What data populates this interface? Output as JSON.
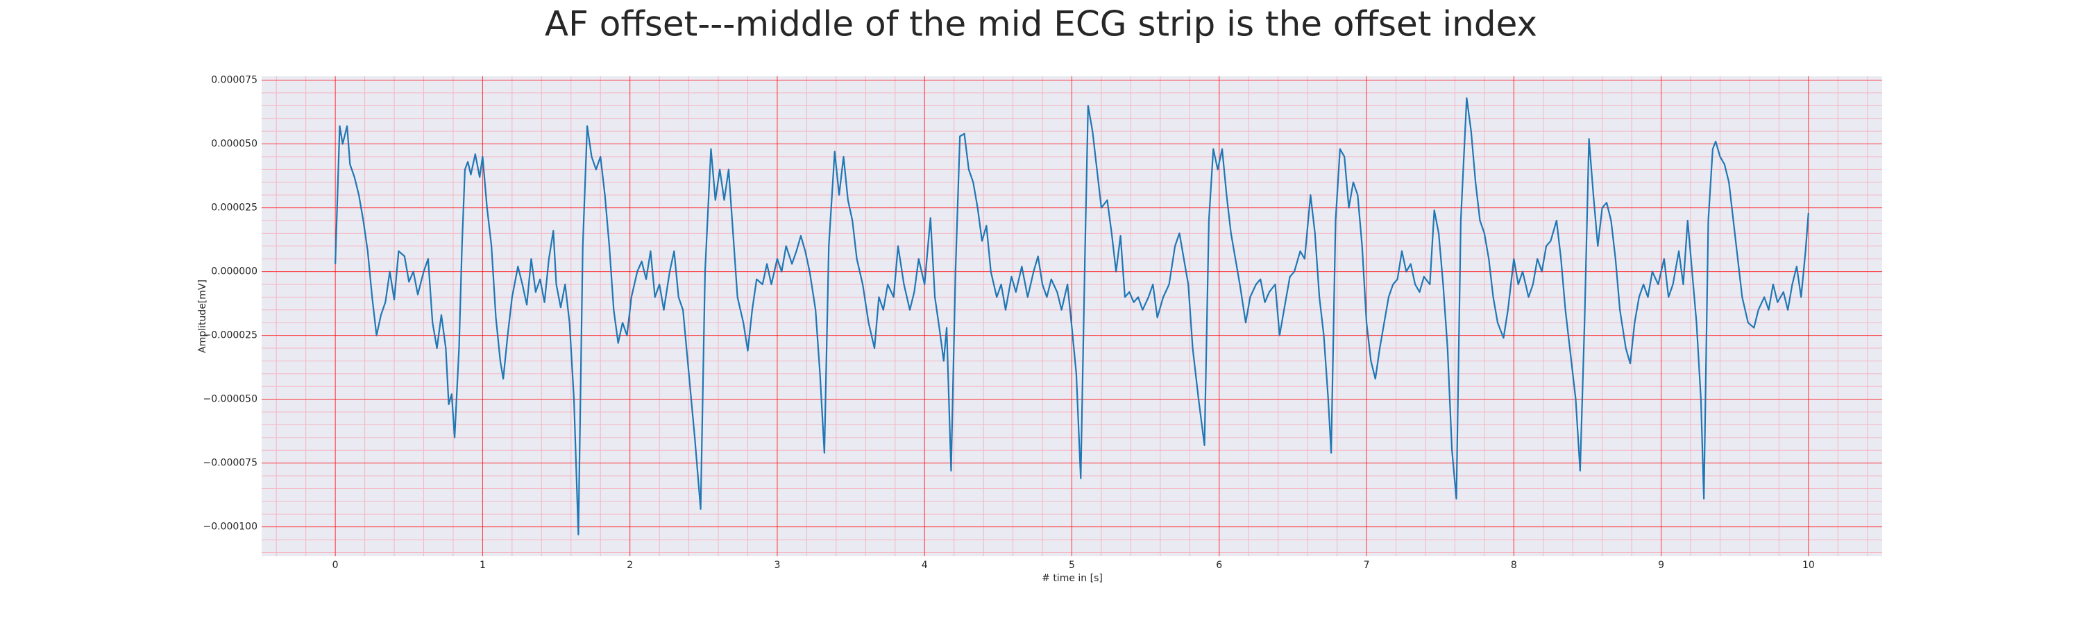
{
  "chart_data": {
    "type": "line",
    "title": "AF offset---middle of the mid ECG strip is the offset index",
    "xlabel": "# time in [s]",
    "ylabel": "Amplitude[mV]",
    "color": "#1f77b4",
    "grid": true,
    "xlim": [
      -0.5,
      10.5
    ],
    "xticks": [
      0,
      1,
      2,
      3,
      4,
      5,
      6,
      7,
      8,
      9,
      10
    ],
    "ylim": [
      -0.0001115,
      7.65e-05
    ],
    "yticks": [
      {
        "value": -0.0001,
        "label": "−0.000100"
      },
      {
        "value": -7.5e-05,
        "label": "−0.000075"
      },
      {
        "value": -5e-05,
        "label": "−0.000050"
      },
      {
        "value": -2.5e-05,
        "label": "−0.000025"
      },
      {
        "value": 0,
        "label": "0.000000"
      },
      {
        "value": 2.5e-05,
        "label": "0.000025"
      },
      {
        "value": 5e-05,
        "label": "0.000050"
      },
      {
        "value": 7.5e-05,
        "label": "0.000075"
      }
    ],
    "x": [
      0,
      0.03,
      0.05,
      0.08,
      0.1,
      0.13,
      0.16,
      0.19,
      0.22,
      0.25,
      0.28,
      0.31,
      0.34,
      0.37,
      0.4,
      0.43,
      0.47,
      0.5,
      0.53,
      0.56,
      0.6,
      0.63,
      0.66,
      0.69,
      0.72,
      0.75,
      0.77,
      0.79,
      0.81,
      0.84,
      0.86,
      0.88,
      0.9,
      0.92,
      0.95,
      0.98,
      1.0,
      1.03,
      1.06,
      1.09,
      1.12,
      1.14,
      1.17,
      1.2,
      1.24,
      1.27,
      1.3,
      1.33,
      1.36,
      1.39,
      1.42,
      1.45,
      1.48,
      1.5,
      1.53,
      1.56,
      1.59,
      1.62,
      1.65,
      1.68,
      1.71,
      1.74,
      1.77,
      1.8,
      1.83,
      1.86,
      1.89,
      1.92,
      1.95,
      1.98,
      2.01,
      2.05,
      2.08,
      2.11,
      2.14,
      2.17,
      2.2,
      2.23,
      2.27,
      2.3,
      2.33,
      2.36,
      2.4,
      2.44,
      2.48,
      2.51,
      2.55,
      2.58,
      2.61,
      2.64,
      2.67,
      2.7,
      2.73,
      2.77,
      2.8,
      2.83,
      2.86,
      2.9,
      2.93,
      2.96,
      3.0,
      3.03,
      3.06,
      3.1,
      3.13,
      3.16,
      3.19,
      3.22,
      3.26,
      3.29,
      3.32,
      3.35,
      3.39,
      3.42,
      3.45,
      3.48,
      3.51,
      3.54,
      3.58,
      3.62,
      3.66,
      3.69,
      3.72,
      3.75,
      3.79,
      3.82,
      3.86,
      3.9,
      3.93,
      3.96,
      4.0,
      4.04,
      4.07,
      4.1,
      4.13,
      4.15,
      4.18,
      4.21,
      4.24,
      4.27,
      4.3,
      4.33,
      4.36,
      4.39,
      4.42,
      4.45,
      4.49,
      4.52,
      4.55,
      4.59,
      4.62,
      4.66,
      4.7,
      4.74,
      4.77,
      4.8,
      4.83,
      4.86,
      4.9,
      4.93,
      4.97,
      5.0,
      5.03,
      5.06,
      5.09,
      5.11,
      5.14,
      5.17,
      5.2,
      5.24,
      5.27,
      5.3,
      5.33,
      5.36,
      5.39,
      5.42,
      5.45,
      5.48,
      5.52,
      5.55,
      5.58,
      5.62,
      5.66,
      5.7,
      5.73,
      5.76,
      5.79,
      5.82,
      5.86,
      5.9,
      5.93,
      5.96,
      5.99,
      6.02,
      6.05,
      6.08,
      6.11,
      6.14,
      6.18,
      6.21,
      6.25,
      6.28,
      6.31,
      6.34,
      6.38,
      6.41,
      6.44,
      6.48,
      6.51,
      6.55,
      6.58,
      6.62,
      6.65,
      6.68,
      6.71,
      6.74,
      6.76,
      6.79,
      6.82,
      6.85,
      6.88,
      6.91,
      6.94,
      6.97,
      7.0,
      7.03,
      7.06,
      7.09,
      7.12,
      7.15,
      7.18,
      7.21,
      7.24,
      7.27,
      7.3,
      7.33,
      7.36,
      7.39,
      7.43,
      7.46,
      7.49,
      7.52,
      7.55,
      7.58,
      7.61,
      7.64,
      7.68,
      7.71,
      7.74,
      7.77,
      7.8,
      7.83,
      7.86,
      7.89,
      7.93,
      7.96,
      8.0,
      8.03,
      8.06,
      8.1,
      8.13,
      8.16,
      8.19,
      8.22,
      8.25,
      8.29,
      8.32,
      8.35,
      8.38,
      8.42,
      8.45,
      8.48,
      8.51,
      8.54,
      8.57,
      8.6,
      8.63,
      8.66,
      8.69,
      8.72,
      8.76,
      8.79,
      8.82,
      8.85,
      8.88,
      8.91,
      8.94,
      8.98,
      9.02,
      9.05,
      9.08,
      9.12,
      9.15,
      9.18,
      9.21,
      9.24,
      9.27,
      9.29,
      9.32,
      9.35,
      9.37,
      9.4,
      9.43,
      9.46,
      9.49,
      9.52,
      9.55,
      9.59,
      9.63,
      9.66,
      9.7,
      9.73,
      9.76,
      9.79,
      9.83,
      9.86,
      9.89,
      9.92,
      9.95,
      9.98,
      10.0
    ],
    "values": [
      3e-06,
      5.7e-05,
      5e-05,
      5.7e-05,
      4.2e-05,
      3.7e-05,
      3e-05,
      2e-05,
      8e-06,
      -1e-05,
      -2.5e-05,
      -1.7e-05,
      -1.2e-05,
      0,
      -1.1e-05,
      8e-06,
      6e-06,
      -4e-06,
      0,
      -9e-06,
      0,
      5e-06,
      -2e-05,
      -3e-05,
      -1.7e-05,
      -3e-05,
      -5.2e-05,
      -4.8e-05,
      -6.5e-05,
      -3e-05,
      1e-05,
      4e-05,
      4.3e-05,
      3.8e-05,
      4.6e-05,
      3.7e-05,
      4.5e-05,
      2.5e-05,
      1e-05,
      -1.8e-05,
      -3.5e-05,
      -4.2e-05,
      -2.5e-05,
      -1e-05,
      2e-06,
      -5e-06,
      -1.3e-05,
      5e-06,
      -8e-06,
      -3e-06,
      -1.2e-05,
      5e-06,
      1.6e-05,
      -5e-06,
      -1.4e-05,
      -5e-06,
      -2e-05,
      -5e-05,
      -0.000103,
      1e-05,
      5.7e-05,
      4.5e-05,
      4e-05,
      4.5e-05,
      3e-05,
      1e-05,
      -1.5e-05,
      -2.8e-05,
      -2e-05,
      -2.5e-05,
      -1e-05,
      0,
      4e-06,
      -3e-06,
      8e-06,
      -1e-05,
      -5e-06,
      -1.5e-05,
      0,
      8e-06,
      -1e-05,
      -1.5e-05,
      -4e-05,
      -6.5e-05,
      -9.3e-05,
      0,
      4.8e-05,
      2.8e-05,
      4e-05,
      2.8e-05,
      4e-05,
      1.5e-05,
      -1e-05,
      -2e-05,
      -3.1e-05,
      -1.5e-05,
      -3e-06,
      -5e-06,
      3e-06,
      -5e-06,
      5e-06,
      0,
      1e-05,
      3e-06,
      8e-06,
      1.4e-05,
      8e-06,
      0,
      -1.5e-05,
      -4e-05,
      -7.1e-05,
      1e-05,
      4.7e-05,
      3e-05,
      4.5e-05,
      2.8e-05,
      2e-05,
      5e-06,
      -5e-06,
      -2e-05,
      -3e-05,
      -1e-05,
      -1.5e-05,
      -5e-06,
      -1e-05,
      1e-05,
      -5e-06,
      -1.5e-05,
      -8e-06,
      5e-06,
      -5e-06,
      2.1e-05,
      -1e-05,
      -2.2e-05,
      -3.5e-05,
      -2.2e-05,
      -7.8e-05,
      0,
      5.3e-05,
      5.4e-05,
      4e-05,
      3.5e-05,
      2.5e-05,
      1.2e-05,
      1.8e-05,
      0,
      -1e-05,
      -5e-06,
      -1.5e-05,
      -2e-06,
      -8e-06,
      2e-06,
      -1e-05,
      0,
      6e-06,
      -5e-06,
      -1e-05,
      -3e-06,
      -8e-06,
      -1.5e-05,
      -5e-06,
      -2.2e-05,
      -4e-05,
      -8.1e-05,
      1e-05,
      6.5e-05,
      5.5e-05,
      4e-05,
      2.5e-05,
      2.8e-05,
      1.5e-05,
      0,
      1.4e-05,
      -1e-05,
      -8e-06,
      -1.2e-05,
      -1e-05,
      -1.5e-05,
      -1e-05,
      -5e-06,
      -1.8e-05,
      -1e-05,
      -5e-06,
      1e-05,
      1.5e-05,
      5e-06,
      -5e-06,
      -3e-05,
      -5e-05,
      -6.8e-05,
      2e-05,
      4.8e-05,
      4e-05,
      4.8e-05,
      3e-05,
      1.5e-05,
      5e-06,
      -5e-06,
      -2e-05,
      -1e-05,
      -5e-06,
      -3e-06,
      -1.2e-05,
      -8e-06,
      -5e-06,
      -2.5e-05,
      -1.5e-05,
      -2e-06,
      0,
      8e-06,
      5e-06,
      3e-05,
      1.5e-05,
      -1e-05,
      -2.5e-05,
      -5e-05,
      -7.1e-05,
      2e-05,
      4.8e-05,
      4.5e-05,
      2.5e-05,
      3.5e-05,
      3e-05,
      1e-05,
      -2e-05,
      -3.5e-05,
      -4.2e-05,
      -3e-05,
      -2e-05,
      -1e-05,
      -5e-06,
      -3e-06,
      8e-06,
      0,
      3e-06,
      -5e-06,
      -8e-06,
      -2e-06,
      -5e-06,
      2.4e-05,
      1.5e-05,
      -5e-06,
      -3e-05,
      -7e-05,
      -8.9e-05,
      2e-05,
      6.8e-05,
      5.5e-05,
      3.5e-05,
      2e-05,
      1.5e-05,
      5e-06,
      -1e-05,
      -2e-05,
      -2.6e-05,
      -1.5e-05,
      5e-06,
      -5e-06,
      0,
      -1e-05,
      -5e-06,
      5e-06,
      0,
      1e-05,
      1.2e-05,
      2e-05,
      5e-06,
      -1.5e-05,
      -3e-05,
      -5e-05,
      -7.8e-05,
      -2e-05,
      5.2e-05,
      3e-05,
      1e-05,
      2.5e-05,
      2.7e-05,
      2e-05,
      5e-06,
      -1.5e-05,
      -3e-05,
      -3.6e-05,
      -2e-05,
      -1e-05,
      -5e-06,
      -1e-05,
      0,
      -5e-06,
      5e-06,
      -1e-05,
      -5e-06,
      8e-06,
      -5e-06,
      2e-05,
      0,
      -2e-05,
      -5e-05,
      -8.9e-05,
      2e-05,
      4.8e-05,
      5.1e-05,
      4.5e-05,
      4.2e-05,
      3.5e-05,
      2e-05,
      5e-06,
      -1e-05,
      -2e-05,
      -2.2e-05,
      -1.5e-05,
      -1e-05,
      -1.5e-05,
      -5e-06,
      -1.2e-05,
      -8e-06,
      -1.5e-05,
      -5e-06,
      2e-06,
      -1e-05,
      8e-06,
      2.3e-05
    ]
  }
}
